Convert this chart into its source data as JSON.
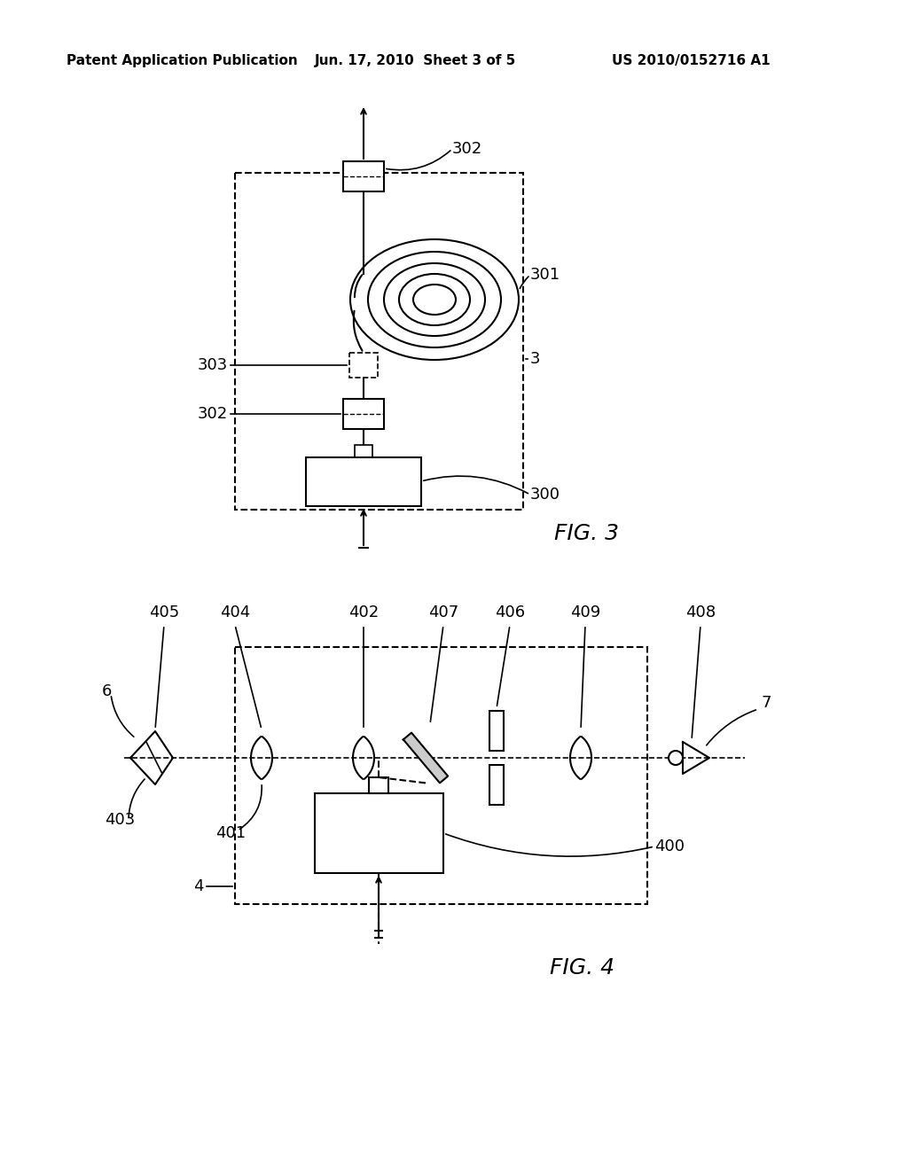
{
  "bg_color": "#ffffff",
  "header_left": "Patent Application Publication",
  "header_mid": "Jun. 17, 2010  Sheet 3 of 5",
  "header_right": "US 2010/0152716 A1",
  "fig3_label": "FIG. 3",
  "fig4_label": "FIG. 4",
  "line_color": "#000000"
}
